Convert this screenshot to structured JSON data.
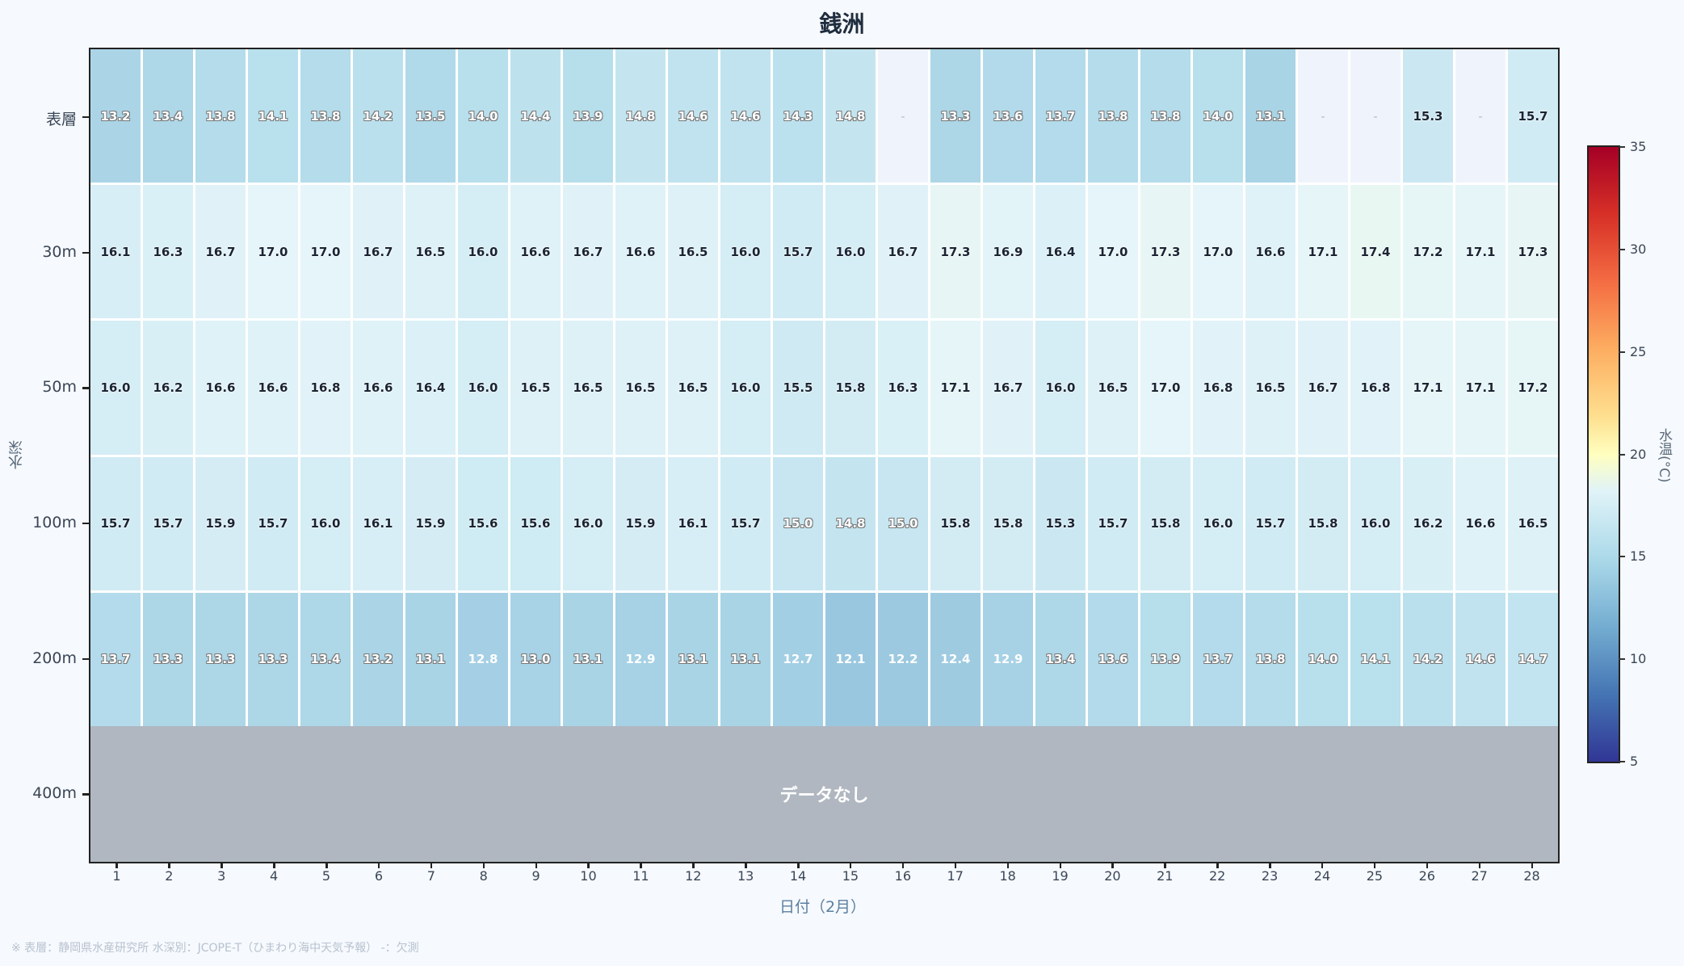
{
  "title": "銭洲",
  "chart_data": {
    "type": "heatmap",
    "title": "銭洲",
    "xlabel": "日付（2月）",
    "ylabel": "水深",
    "x": [
      1,
      2,
      3,
      4,
      5,
      6,
      7,
      8,
      9,
      10,
      11,
      12,
      13,
      14,
      15,
      16,
      17,
      18,
      19,
      20,
      21,
      22,
      23,
      24,
      25,
      26,
      27,
      28
    ],
    "y": [
      "表層",
      "30m",
      "50m",
      "100m",
      "200m",
      "400m"
    ],
    "values": [
      [
        13.2,
        13.4,
        13.8,
        14.1,
        13.8,
        14.2,
        13.5,
        14.0,
        14.4,
        13.9,
        14.8,
        14.6,
        14.6,
        14.3,
        14.8,
        null,
        13.3,
        13.6,
        13.7,
        13.8,
        13.8,
        14.0,
        13.1,
        null,
        null,
        15.3,
        null,
        15.7
      ],
      [
        16.1,
        16.3,
        16.7,
        17.0,
        17.0,
        16.7,
        16.5,
        16.0,
        16.6,
        16.7,
        16.6,
        16.5,
        16.0,
        15.7,
        16.0,
        16.7,
        17.3,
        16.9,
        16.4,
        17.0,
        17.3,
        17.0,
        16.6,
        17.1,
        17.4,
        17.2,
        17.1,
        17.3
      ],
      [
        16.0,
        16.2,
        16.6,
        16.6,
        16.8,
        16.6,
        16.4,
        16.0,
        16.5,
        16.5,
        16.5,
        16.5,
        16.0,
        15.5,
        15.8,
        16.3,
        17.1,
        16.7,
        16.0,
        16.5,
        17.0,
        16.8,
        16.5,
        16.7,
        16.8,
        17.1,
        17.1,
        17.2
      ],
      [
        15.7,
        15.7,
        15.9,
        15.7,
        16.0,
        16.1,
        15.9,
        15.6,
        15.6,
        16.0,
        15.9,
        16.1,
        15.7,
        15.0,
        14.8,
        15.0,
        15.8,
        15.8,
        15.3,
        15.7,
        15.8,
        16.0,
        15.7,
        15.8,
        16.0,
        16.2,
        16.6,
        16.5
      ],
      [
        13.7,
        13.3,
        13.3,
        13.3,
        13.4,
        13.2,
        13.1,
        12.8,
        13.0,
        13.1,
        12.9,
        13.1,
        13.1,
        12.7,
        12.1,
        12.2,
        12.4,
        12.9,
        13.4,
        13.6,
        13.9,
        13.7,
        13.8,
        14.0,
        14.1,
        14.2,
        14.6,
        14.7
      ],
      null
    ],
    "missing_marker": "-",
    "no_data_label": "データなし",
    "colormap": "RdYlBu_r",
    "colorbar": {
      "label": "水温(°C)",
      "min": 5,
      "max": 35,
      "ticks": [
        5,
        10,
        15,
        20,
        25,
        30,
        35
      ]
    }
  },
  "footnote": "※ 表層：静岡県水産研究所  水深別：JCOPE-T（ひまわり海中天気予報）  -：欠測",
  "colors": {
    "missing_cell": "#eff4fc",
    "no_data": "#b0b7c1",
    "background": "#f6f9fd"
  }
}
